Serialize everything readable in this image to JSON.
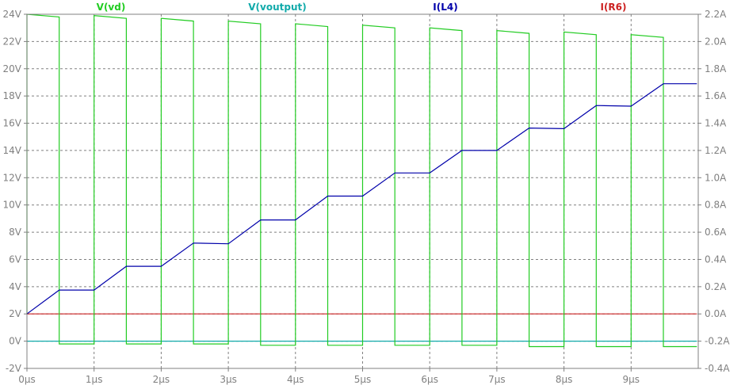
{
  "chart_data": {
    "type": "line",
    "x_unit": "µs",
    "x_ticks": [
      "0µs",
      "1µs",
      "2µs",
      "3µs",
      "4µs",
      "5µs",
      "6µs",
      "7µs",
      "8µs",
      "9µs"
    ],
    "xlim": [
      0,
      10
    ],
    "y_left_ticks": [
      "-2V",
      "0V",
      "2V",
      "4V",
      "6V",
      "8V",
      "10V",
      "12V",
      "14V",
      "16V",
      "18V",
      "20V",
      "22V",
      "24V"
    ],
    "y_left_lim": [
      -2,
      24
    ],
    "y_right_ticks": [
      "-0.4A",
      "-0.2A",
      "0.0A",
      "0.2A",
      "0.4A",
      "0.6A",
      "0.8A",
      "1.0A",
      "1.2A",
      "1.4A",
      "1.6A",
      "1.8A",
      "2.0A",
      "2.2A"
    ],
    "y_right_lim": [
      -0.4,
      2.2
    ],
    "grid": true,
    "legend_position": "top",
    "series": [
      {
        "name": "V(vd)",
        "axis": "left",
        "color": "#22cc22",
        "x": [
          0,
          0.0,
          0.48,
          0.48,
          1.0,
          1.0,
          1.48,
          1.48,
          2.0,
          2.0,
          2.48,
          2.48,
          3.0,
          3.0,
          3.48,
          3.48,
          4.0,
          4.0,
          4.48,
          4.48,
          5.0,
          5.0,
          5.48,
          5.48,
          6.0,
          6.0,
          6.48,
          6.48,
          7.0,
          7.0,
          7.48,
          7.48,
          8.0,
          8.0,
          8.48,
          8.48,
          9.0,
          9.0,
          9.48,
          9.48,
          9.98
        ],
        "y": [
          2.0,
          24.0,
          23.8,
          -0.2,
          -0.2,
          23.9,
          23.7,
          -0.2,
          -0.2,
          23.7,
          23.5,
          -0.2,
          -0.2,
          23.5,
          23.3,
          -0.3,
          -0.3,
          23.3,
          23.1,
          -0.3,
          -0.3,
          23.2,
          23.0,
          -0.3,
          -0.3,
          23.0,
          22.8,
          -0.3,
          -0.3,
          22.8,
          22.6,
          -0.4,
          -0.4,
          22.7,
          22.5,
          -0.4,
          -0.4,
          22.5,
          22.3,
          -0.4,
          -0.4
        ]
      },
      {
        "name": "V(voutput)",
        "axis": "left",
        "color": "#11aaaa",
        "x": [
          0,
          9.98
        ],
        "y": [
          0.0,
          0.0
        ]
      },
      {
        "name": "I(L4)",
        "axis": "right",
        "color": "#0000aa",
        "x": [
          0,
          0.48,
          1.0,
          1.48,
          2.0,
          2.48,
          3.0,
          3.48,
          4.0,
          4.48,
          5.0,
          5.48,
          6.0,
          6.48,
          7.0,
          7.48,
          8.0,
          8.48,
          9.0,
          9.48,
          9.98
        ],
        "y": [
          0.0,
          0.175,
          0.175,
          0.35,
          0.35,
          0.52,
          0.515,
          0.69,
          0.69,
          0.865,
          0.865,
          1.035,
          1.035,
          1.2,
          1.2,
          1.365,
          1.36,
          1.53,
          1.525,
          1.69,
          1.69
        ]
      },
      {
        "name": "I(R6)",
        "axis": "right",
        "color": "#cc2222",
        "x": [
          0,
          9.98
        ],
        "y": [
          0.0,
          0.0
        ]
      }
    ]
  }
}
